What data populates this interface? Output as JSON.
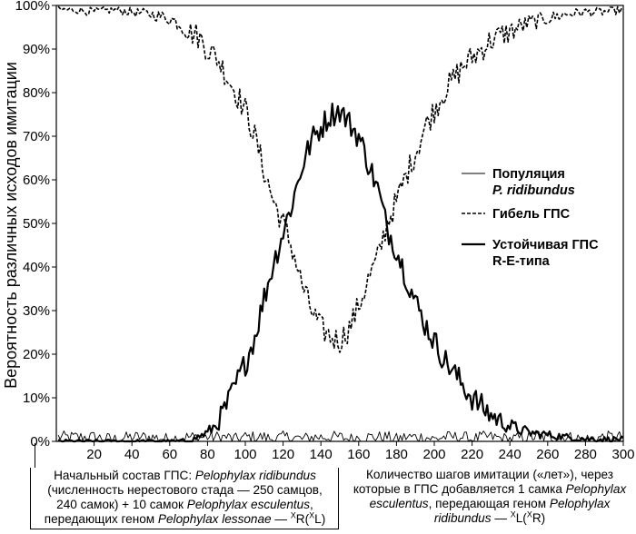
{
  "chart_data": {
    "type": "line",
    "xlabel_parts": {
      "a": "Количество шагов имитации («лет»), через которые в ГПС добавляется 1 самка ",
      "b": "Pelophylax esculentus",
      "c": ", передающая геном ",
      "d": "Pelophylax ridibundus",
      "e": " — ",
      "f": "X",
      "g": "L(",
      "h": "X",
      "i": "R)"
    },
    "ylabel": "Вероятность различных исходов имитации",
    "xlim": [
      0,
      300
    ],
    "ylim": [
      0,
      100
    ],
    "x_ticks": [
      "20",
      "40",
      "60",
      "80",
      "100",
      "120",
      "140",
      "160",
      "180",
      "200",
      "220",
      "240",
      "260",
      "280",
      "300"
    ],
    "x_tick_values": [
      20,
      40,
      60,
      80,
      100,
      120,
      140,
      160,
      180,
      200,
      220,
      240,
      260,
      280,
      300
    ],
    "y_ticks": [
      "0%",
      "10%",
      "20%",
      "30%",
      "40%",
      "50%",
      "60%",
      "70%",
      "80%",
      "90%",
      "100%"
    ],
    "y_tick_values": [
      0,
      10,
      20,
      30,
      40,
      50,
      60,
      70,
      80,
      90,
      100
    ],
    "x": [
      1,
      10,
      20,
      30,
      40,
      50,
      60,
      65,
      70,
      75,
      80,
      85,
      90,
      95,
      100,
      105,
      110,
      115,
      120,
      125,
      130,
      135,
      140,
      145,
      150,
      155,
      160,
      165,
      170,
      175,
      180,
      185,
      190,
      195,
      200,
      205,
      210,
      215,
      220,
      225,
      230,
      240,
      250,
      260,
      270,
      280,
      290,
      300
    ],
    "series": [
      {
        "name_parts": [
          "Популяция",
          "P. ridibundus"
        ],
        "style": "thin",
        "values": [
          1,
          1,
          1,
          0.5,
          1,
          1,
          0.5,
          1,
          1,
          1,
          1,
          1,
          1,
          0.5,
          1,
          1,
          1,
          0.5,
          1,
          1,
          0.5,
          1,
          1,
          1,
          1,
          0.5,
          1,
          1,
          1,
          1,
          0.5,
          1,
          1,
          1,
          0.5,
          1,
          1,
          1,
          0.5,
          1,
          1,
          0.5,
          1,
          1,
          1,
          0.5,
          1,
          1
        ]
      },
      {
        "name": "Гибель ГПС",
        "style": "dashed",
        "values": [
          99,
          99,
          98.5,
          99,
          98.5,
          98,
          97,
          96,
          94,
          93,
          90,
          88,
          84,
          80,
          76,
          70,
          62,
          55,
          50,
          44,
          36,
          30,
          26,
          24,
          23,
          26,
          31,
          37,
          42,
          50,
          55,
          61,
          66,
          72,
          76,
          80,
          83,
          86,
          88,
          90,
          92,
          94,
          96,
          97,
          98,
          98.5,
          98.5,
          99
        ]
      },
      {
        "name_parts": [
          "Устойчивая ГПС",
          "R-E-типа"
        ],
        "style": "thick",
        "values": [
          0,
          0,
          0,
          0,
          0,
          0,
          0,
          0,
          0,
          1,
          2,
          4,
          8,
          13,
          18,
          24,
          33,
          41,
          48,
          55,
          63,
          69,
          72,
          75,
          76,
          73,
          70,
          64,
          58,
          49,
          44,
          38,
          32,
          27,
          23,
          19,
          16,
          13,
          10,
          8,
          6,
          3.5,
          2,
          1.5,
          1,
          0.5,
          0.5,
          0.5
        ]
      }
    ],
    "legend_position": "right",
    "grid": false
  },
  "initial_note": {
    "a": "Начальный состав ГПС: ",
    "b": "Pelophylax ridibundus",
    "c": " (численность нерестового стада — 250 самцов, 240 самок) + 10 самок ",
    "d": "Pelophylax esculentus",
    "e": ", передающих геном ",
    "f": "Pelophylax lessonae",
    "g": " — ",
    "h": "X",
    "i": "R(",
    "j": "X",
    "k": "L)"
  }
}
